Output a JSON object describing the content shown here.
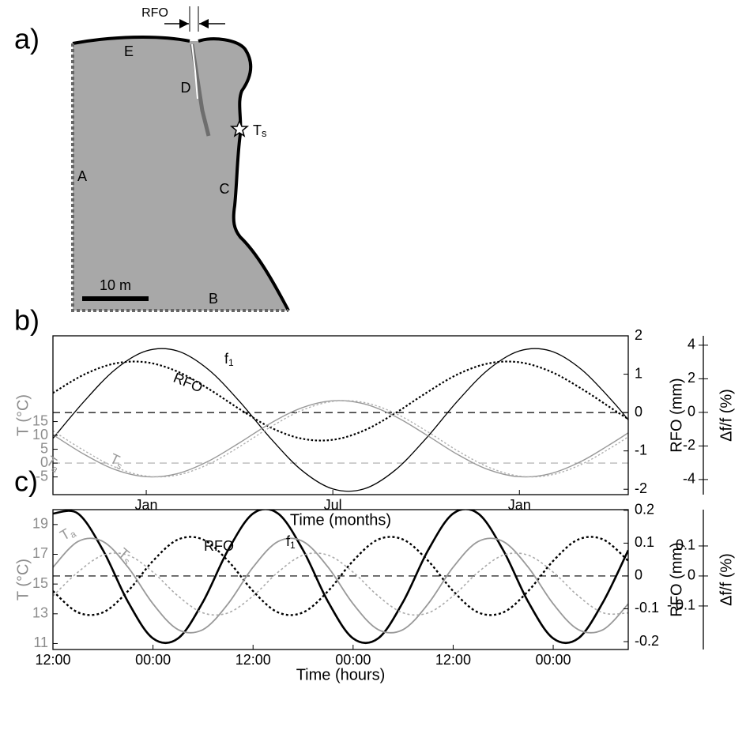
{
  "panels": [
    "a)",
    "b)",
    "c)"
  ],
  "diagram": {
    "labels": [
      "E",
      "D",
      "A",
      "C",
      "B"
    ],
    "ts_label": {
      "text": "T",
      "sub": "s"
    },
    "rfo_label": "RFO",
    "scale_label": "10 m"
  },
  "chart_data": [
    {
      "type": "line",
      "xlabel": "Time (months)",
      "ylabel": "T (°C)",
      "y2label": "RFO (mm)",
      "y3label": "Δf/f (%)",
      "y_color": "#8c8c8c",
      "x": [
        -3,
        -2,
        -1,
        0,
        1,
        2,
        3,
        4,
        5,
        6,
        7,
        8,
        9,
        10,
        11,
        12,
        13,
        14,
        15,
        15.5
      ],
      "xlim": [
        -3,
        15.5
      ],
      "xticks": [
        {
          "value": 0,
          "label": "Jan"
        },
        {
          "value": 6,
          "label": "Jul"
        },
        {
          "value": 12,
          "label": "Jan"
        }
      ],
      "ylim": [
        -11.4,
        46
      ],
      "yticks": [
        -5,
        0,
        5,
        10,
        15
      ],
      "y2lim": [
        -2.14,
        2
      ],
      "y2ticks": [
        -2,
        -1,
        0,
        1,
        2
      ],
      "y3lim": [
        -4.9,
        4.56
      ],
      "y3ticks": [
        -4,
        -2,
        0,
        2,
        4
      ],
      "reference_lines": [
        {
          "axis": "y2",
          "value": 0,
          "color": "#000000"
        },
        {
          "axis": "y",
          "value": 0,
          "color": "#aaaaaa"
        }
      ],
      "series": [
        {
          "axis": "y3",
          "color": "#000000",
          "style": "solid",
          "values": [
            -1.55,
            0.65,
            2.55,
            3.66,
            3.66,
            2.55,
            0.65,
            -1.55,
            -3.45,
            -4.56,
            -4.56,
            -3.45,
            -1.55,
            0.65,
            2.55,
            3.66,
            3.66,
            2.55,
            0.65,
            -0.45
          ]
        },
        {
          "axis": "y2",
          "color": "#000000",
          "style": "dotted",
          "values": [
            0.51,
            0.99,
            1.28,
            1.31,
            1.07,
            0.62,
            0.09,
            -0.39,
            -0.68,
            -0.71,
            -0.47,
            -0.02,
            0.51,
            0.99,
            1.28,
            1.31,
            1.07,
            0.62,
            0.09,
            -0.17
          ]
        },
        {
          "axis": "y",
          "color": "#999999",
          "style": "solid",
          "values": [
            10.25,
            3.19,
            -2.36,
            -4.93,
            -3.81,
            0.69,
            7.35,
            14.42,
            19.96,
            22.53,
            21.41,
            16.91,
            10.25,
            3.19,
            -2.36,
            -4.93,
            -3.81,
            0.69,
            7.35,
            10.95
          ]
        },
        {
          "axis": "y",
          "color": "#b0b0b0",
          "style": "dotted",
          "values": [
            11.67,
            4.54,
            -1.45,
            -4.7,
            -4.32,
            -0.43,
            5.93,
            13.06,
            19.05,
            22.3,
            21.92,
            18.03,
            11.67,
            4.54,
            -1.45,
            -4.7,
            -4.32,
            -0.43,
            5.93,
            9.52
          ]
        }
      ],
      "annotations": [
        {
          "text": "f",
          "sub": "1",
          "color": "#000000"
        },
        {
          "text": "RFO",
          "color": "#000000"
        },
        {
          "text": "T",
          "sub": "a",
          "color": "#999999"
        },
        {
          "text": "T",
          "sub": "s",
          "color": "#999999"
        }
      ]
    },
    {
      "type": "line",
      "xlabel": "Time (hours)",
      "ylabel": "T (°C)",
      "y2label": "RFO (mm)",
      "y3label": "Δf/f (%)",
      "y_color": "#8c8c8c",
      "x": [
        0,
        3,
        6,
        9,
        12,
        15,
        18,
        21,
        24,
        27,
        30,
        33,
        36,
        39,
        42,
        45,
        48,
        51,
        54,
        57,
        60,
        63,
        66,
        69
      ],
      "xlim": [
        0,
        69
      ],
      "xticks": [
        {
          "value": 0,
          "label": "12:00"
        },
        {
          "value": 12,
          "label": "00:00"
        },
        {
          "value": 24,
          "label": "12:00"
        },
        {
          "value": 36,
          "label": "00:00"
        },
        {
          "value": 48,
          "label": "12:00"
        },
        {
          "value": 60,
          "label": "00:00"
        }
      ],
      "ylim": [
        10.6,
        20
      ],
      "yticks": [
        11,
        13,
        15,
        17,
        19
      ],
      "y2lim": [
        -0.224,
        0.202
      ],
      "y2ticks": [
        -0.2,
        -0.1,
        0,
        0.1,
        0.2
      ],
      "y3lim": [
        -0.245,
        0.221
      ],
      "y3ticks": [
        {
          "value": -0.1,
          "label": "- 0.1"
        },
        0,
        0.1
      ],
      "reference_lines": [
        {
          "axis": "y2",
          "value": 0,
          "color": "#000000"
        }
      ],
      "series": [
        {
          "axis": "y3",
          "color": "#000000",
          "style": "solid",
          "values": [
            0.208,
            0.208,
            0.086,
            -0.086,
            -0.208,
            -0.208,
            -0.086,
            0.086,
            0.208,
            0.208,
            0.086,
            -0.086,
            -0.208,
            -0.208,
            -0.086,
            0.086,
            0.208,
            0.208,
            0.086,
            -0.086,
            -0.208,
            -0.208,
            -0.086,
            0.086
          ]
        },
        {
          "axis": "y2",
          "color": "#000000",
          "style": "dotted",
          "values": [
            -0.046,
            -0.111,
            -0.111,
            -0.046,
            0.046,
            0.111,
            0.111,
            0.046,
            -0.046,
            -0.111,
            -0.111,
            -0.046,
            0.046,
            0.111,
            0.111,
            0.046,
            -0.046,
            -0.111,
            -0.111,
            -0.046,
            0.046,
            0.111,
            0.111,
            0.046
          ]
        },
        {
          "axis": "y",
          "color": "#999999",
          "style": "solid",
          "values": [
            16.13,
            17.86,
            17.86,
            16.13,
            13.67,
            11.94,
            11.94,
            13.67,
            16.13,
            17.86,
            17.86,
            16.13,
            13.67,
            11.94,
            11.94,
            13.67,
            16.13,
            17.86,
            17.86,
            16.13,
            13.67,
            11.94,
            11.94,
            13.67
          ]
        },
        {
          "axis": "y",
          "color": "#aaaaaa",
          "style": "dotted",
          "values": [
            14.2,
            15.8,
            16.94,
            16.94,
            15.8,
            14.2,
            13.06,
            13.06,
            14.2,
            15.8,
            16.94,
            16.94,
            15.8,
            14.2,
            13.06,
            13.06,
            14.2,
            15.8,
            16.94,
            16.94,
            15.8,
            14.2,
            13.06,
            13.06
          ]
        }
      ],
      "annotations": [
        {
          "text": "f",
          "sub": "1",
          "color": "#000000"
        },
        {
          "text": "RFO",
          "color": "#000000"
        },
        {
          "text": "T",
          "sub": "a",
          "color": "#999999"
        },
        {
          "text": "T",
          "sub": "s",
          "color": "#999999"
        }
      ]
    }
  ]
}
